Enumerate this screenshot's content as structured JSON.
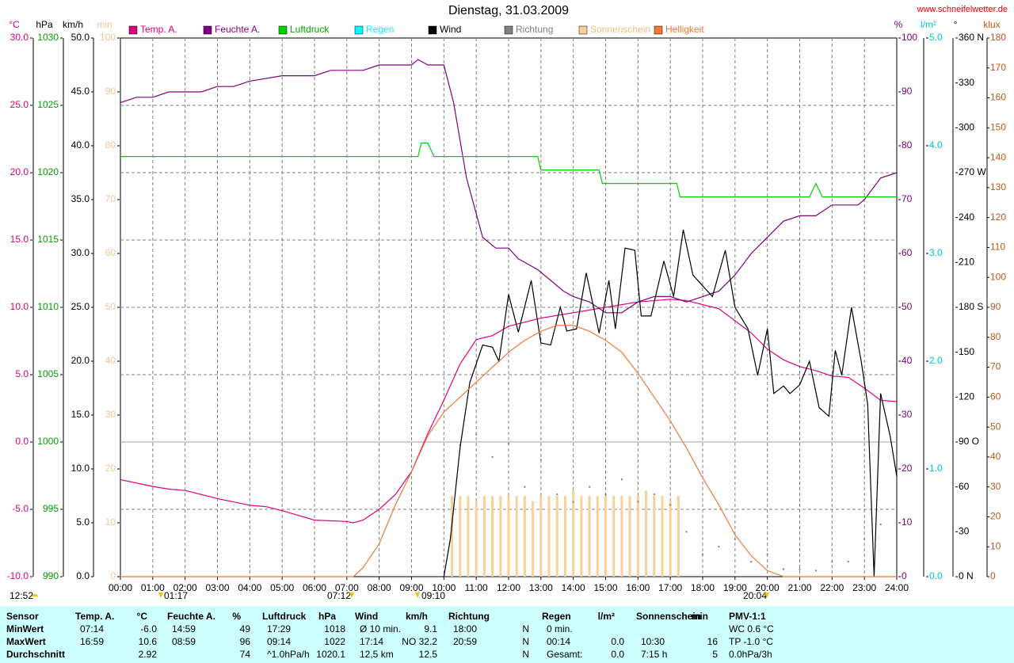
{
  "chart_data": {
    "type": "line",
    "title": "Dienstag, 31.03.2009",
    "source": "www.schneifelwetter.de",
    "grid": true,
    "xlim": [
      0,
      24
    ],
    "xticks": [
      {
        "value": 0,
        "label": "00:00"
      },
      {
        "value": 1,
        "label": "01:00"
      },
      {
        "value": 2,
        "label": "02:00"
      },
      {
        "value": 3,
        "label": "03:00"
      },
      {
        "value": 4,
        "label": "04:00"
      },
      {
        "value": 5,
        "label": "05:00"
      },
      {
        "value": 6,
        "label": "06:00"
      },
      {
        "value": 7,
        "label": "07:00"
      },
      {
        "value": 8,
        "label": "08:00"
      },
      {
        "value": 9,
        "label": "09:00"
      },
      {
        "value": 10,
        "label": "10:00"
      },
      {
        "value": 11,
        "label": "11:00"
      },
      {
        "value": 12,
        "label": "12:00"
      },
      {
        "value": 13,
        "label": "13:00"
      },
      {
        "value": 14,
        "label": "14:00"
      },
      {
        "value": 15,
        "label": "15:00"
      },
      {
        "value": 16,
        "label": "16:00"
      },
      {
        "value": 17,
        "label": "17:00"
      },
      {
        "value": 18,
        "label": "18:00"
      },
      {
        "value": 19,
        "label": "19:00"
      },
      {
        "value": 20,
        "label": "20:00"
      },
      {
        "value": 21,
        "label": "21:00"
      },
      {
        "value": 22,
        "label": "22:00"
      },
      {
        "value": 23,
        "label": "23:00"
      },
      {
        "value": 24,
        "label": "24:00"
      }
    ],
    "axes": [
      {
        "label": "°C",
        "color": "#e0007f",
        "lim": [
          -10,
          30
        ],
        "ticks": [
          {
            "value": -10,
            "label": "-10.0"
          },
          {
            "value": -5,
            "label": "-5.0"
          },
          {
            "value": 0,
            "label": "0.0"
          },
          {
            "value": 5,
            "label": "5.0"
          },
          {
            "value": 10,
            "label": "10.0"
          },
          {
            "value": 15,
            "label": "15.0"
          },
          {
            "value": 20,
            "label": "20.0"
          },
          {
            "value": 25,
            "label": "25.0"
          },
          {
            "value": 30,
            "label": "30.0"
          }
        ]
      },
      {
        "label": "hPa",
        "color": "#00a000",
        "lim": [
          990,
          1030
        ],
        "ticks": [
          990,
          995,
          1000,
          1005,
          1010,
          1015,
          1020,
          1025,
          1030
        ]
      },
      {
        "label": "km/h",
        "color": "#000000",
        "lim": [
          0,
          50
        ],
        "ticks": [
          {
            "value": 0,
            "label": "0.0"
          },
          {
            "value": 5,
            "label": "5.0"
          },
          {
            "value": 10,
            "label": "10.0"
          },
          {
            "value": 15,
            "label": "15.0"
          },
          {
            "value": 20,
            "label": "20.0"
          },
          {
            "value": 25,
            "label": "25.0"
          },
          {
            "value": 30,
            "label": "30.0"
          },
          {
            "value": 35,
            "label": "35.0"
          },
          {
            "value": 40,
            "label": "40.0"
          },
          {
            "value": 45,
            "label": "45.0"
          },
          {
            "value": 50,
            "label": "50.0"
          }
        ]
      },
      {
        "label": "min",
        "color": "#f0c890",
        "lim": [
          0,
          100
        ],
        "ticks": [
          0,
          10,
          20,
          30,
          40,
          50,
          60,
          70,
          80,
          90,
          100
        ]
      },
      {
        "label": "%",
        "color": "#800080",
        "lim": [
          0,
          100
        ],
        "ticks": [
          0,
          10,
          20,
          30,
          40,
          50,
          60,
          70,
          80,
          90,
          100
        ]
      },
      {
        "label": "l/m²",
        "color": "#00c8c8",
        "lim": [
          0,
          5
        ],
        "ticks": [
          {
            "value": 0,
            "label": "0.0"
          },
          {
            "value": 1,
            "label": "1.0"
          },
          {
            "value": 2,
            "label": "2.0"
          },
          {
            "value": 3,
            "label": "3.0"
          },
          {
            "value": 4,
            "label": "4.0"
          },
          {
            "value": 5,
            "label": "5.0"
          }
        ]
      },
      {
        "label": "°",
        "color": "#000000",
        "lim": [
          0,
          360
        ],
        "ticks": [
          {
            "value": 0,
            "label": "0 N"
          },
          30,
          60,
          {
            "value": 90,
            "label": "90 O"
          },
          120,
          150,
          {
            "value": 180,
            "label": "180 S"
          },
          210,
          240,
          {
            "value": 270,
            "label": "270 W"
          },
          300,
          330,
          {
            "value": 360,
            "label": "360 N"
          }
        ]
      },
      {
        "label": "klux",
        "color": "#c05818",
        "lim": [
          0,
          180
        ],
        "ticks": [
          0,
          10,
          20,
          30,
          40,
          50,
          60,
          70,
          80,
          90,
          100,
          110,
          120,
          130,
          140,
          150,
          160,
          170,
          180
        ]
      }
    ],
    "series": [
      {
        "name": "Temp. A.",
        "color": "#e0007f",
        "axis": 0,
        "style": "line",
        "x": [
          0,
          1,
          1.5,
          2,
          3,
          4,
          4.5,
          5,
          6,
          7,
          7.2,
          7.5,
          8,
          8.5,
          9,
          9.5,
          10,
          10.5,
          11,
          11.5,
          12,
          12.5,
          13,
          13.5,
          14,
          14.5,
          15,
          16,
          17,
          17.5,
          18,
          18.5,
          19,
          19.5,
          20,
          20.5,
          21,
          21.5,
          22,
          22.5,
          23,
          23.5,
          24
        ],
        "values": [
          -2.8,
          -3.3,
          -3.5,
          -3.6,
          -4.2,
          -4.7,
          -4.8,
          -5.1,
          -5.8,
          -5.9,
          -6.0,
          -5.8,
          -5.0,
          -3.9,
          -2.2,
          0.6,
          3.1,
          5.8,
          7.6,
          7.9,
          8.6,
          8.9,
          9.2,
          9.4,
          9.6,
          9.8,
          10.0,
          10.4,
          10.6,
          10.5,
          10.2,
          9.9,
          9.0,
          8.1,
          6.9,
          6.1,
          5.6,
          5.3,
          4.9,
          4.8,
          4.0,
          3.1,
          3.0
        ]
      },
      {
        "name": "Feuchte A.",
        "color": "#800080",
        "axis": 4,
        "style": "line",
        "x": [
          0,
          0.5,
          1,
          1.5,
          2.5,
          3,
          3.5,
          4,
          5,
          6,
          6.5,
          7.5,
          8,
          9,
          9.2,
          9.5,
          10,
          10.3,
          10.7,
          11.2,
          11.6,
          12,
          12.3,
          12.9,
          13.3,
          13.7,
          14,
          14.5,
          15,
          15.5,
          16,
          16.5,
          17,
          17.5,
          18,
          18.5,
          19,
          19.5,
          20,
          20.5,
          21,
          21.5,
          22,
          22.8,
          23,
          23.5,
          24
        ],
        "values": [
          88,
          89,
          89,
          90,
          90,
          91,
          91,
          92,
          93,
          93,
          94,
          94,
          95,
          95,
          96,
          95,
          95,
          88,
          74,
          63,
          61,
          61,
          59,
          57,
          55,
          53,
          52,
          51,
          49,
          49,
          51,
          52,
          52,
          51,
          52,
          53,
          56,
          60,
          63,
          66,
          67,
          67,
          69,
          69,
          70,
          74,
          75
        ]
      },
      {
        "name": "Luftdruck",
        "color": "#00d000",
        "axis": 1,
        "style": "line",
        "x": [
          0,
          9.2,
          9.3,
          9.5,
          9.7,
          12.9,
          13,
          14.8,
          14.9,
          17.2,
          17.3,
          21.3,
          21.5,
          21.7,
          24
        ],
        "values": [
          1021.2,
          1021.2,
          1022.2,
          1022.2,
          1021.2,
          1021.2,
          1020.2,
          1020.2,
          1019.2,
          1019.2,
          1018.2,
          1018.2,
          1019.2,
          1018.2,
          1018.2
        ]
      },
      {
        "name": "Regen",
        "color": "#00ffff",
        "axis": 5,
        "style": "line",
        "x": [],
        "values": []
      },
      {
        "name": "Wind",
        "color": "#000000",
        "axis": 2,
        "style": "line",
        "x": [
          10,
          10.2,
          10.5,
          10.8,
          11.2,
          11.5,
          11.7,
          12,
          12.3,
          12.7,
          13,
          13.3,
          13.6,
          13.8,
          14.1,
          14.4,
          14.8,
          15.1,
          15.3,
          15.6,
          15.9,
          16.1,
          16.4,
          16.8,
          17.1,
          17.4,
          17.7,
          18,
          18.3,
          18.7,
          19,
          19.4,
          19.7,
          20,
          20.2,
          20.5,
          20.7,
          21,
          21.3,
          21.6,
          21.9,
          22.1,
          22.3,
          22.6,
          22.9,
          23.1,
          23.3,
          23.5,
          23.8,
          24
        ],
        "values": [
          0,
          3.5,
          12,
          18,
          21.5,
          21.3,
          20,
          26.2,
          22.7,
          27.5,
          21.7,
          21.5,
          25,
          22.8,
          23,
          28.2,
          22.6,
          27.5,
          23,
          30.5,
          30.3,
          24.2,
          24.2,
          29.3,
          26,
          32.2,
          28,
          27,
          26,
          30.3,
          25,
          23,
          18.7,
          23,
          17,
          17.7,
          17,
          17.8,
          20,
          15.7,
          14.9,
          21,
          18.7,
          25,
          20,
          16,
          0,
          17,
          13,
          9.3
        ]
      },
      {
        "name": "Richtung",
        "color": "#808080",
        "axis": 6,
        "style": "dots",
        "x": [
          10.5,
          11,
          11.5,
          12,
          12.5,
          13,
          13.5,
          14,
          14.5,
          15,
          15.5,
          16,
          16.5,
          17,
          17.5,
          18,
          18.5,
          19,
          19.5,
          20,
          20.5,
          21,
          21.5,
          22,
          22.5,
          23,
          23.5,
          24
        ],
        "values": [
          88,
          95,
          80,
          89,
          60,
          78,
          55,
          50,
          60,
          55,
          65,
          50,
          55,
          48,
          30,
          15,
          20,
          25,
          10,
          15,
          5,
          5,
          4,
          10,
          10,
          25,
          35,
          25
        ]
      },
      {
        "name": "Sonnenschein",
        "color": "#f8d098",
        "axis": 3,
        "style": "bars",
        "x": [
          10.25,
          10.5,
          10.75,
          11,
          11.25,
          11.5,
          11.75,
          12,
          12.25,
          12.5,
          12.75,
          13,
          13.25,
          13.5,
          13.75,
          14,
          14.25,
          14.5,
          14.75,
          15,
          15.25,
          15.5,
          15.75,
          16,
          16.25,
          16.5,
          16.75,
          17,
          17.25
        ],
        "values": [
          15,
          15,
          15,
          14,
          15,
          15,
          15,
          15,
          15,
          15,
          14,
          15,
          15,
          15,
          15,
          16,
          15,
          15,
          15,
          15,
          15,
          15,
          15,
          15,
          16,
          15,
          15,
          14,
          15
        ]
      },
      {
        "name": "Helligkeit",
        "color": "#f07838",
        "axis": 7,
        "style": "line",
        "x": [
          0,
          7.2,
          7.5,
          8,
          8.5,
          9,
          9.5,
          10,
          10.5,
          11,
          11.5,
          12,
          12.5,
          13,
          13.5,
          14,
          14.5,
          15,
          15.5,
          16,
          16.5,
          17,
          17.5,
          18,
          18.5,
          19,
          19.5,
          20,
          20.5,
          24
        ],
        "values": [
          0,
          0,
          3,
          11,
          24,
          35,
          47,
          55,
          60,
          65,
          70,
          75,
          79,
          82,
          84,
          84,
          82,
          79,
          75,
          68,
          60,
          52,
          43,
          33,
          24,
          14,
          7,
          2,
          0,
          0
        ]
      }
    ],
    "annotations": [
      "12:52",
      "01:17",
      "07:12",
      "09:10",
      "20:04"
    ]
  },
  "table": {
    "header_label": "Sensor",
    "columns": [
      {
        "title": "Temp. A.",
        "unit": "°C"
      },
      {
        "title": "Feuchte A.",
        "unit": "%"
      },
      {
        "title": "Luftdruck",
        "unit": "hPa"
      },
      {
        "title": "Wind",
        "unit": "km/h"
      },
      {
        "title": "Richtung"
      },
      {
        "title": "Regen",
        "unit": "l/m²"
      },
      {
        "title": "Sonnenschein",
        "unit": "min"
      },
      {
        "title": "PMV-1:1"
      }
    ],
    "rows": [
      {
        "label": "MinWert",
        "cells": [
          {
            "left": "07:14",
            "right": "-6.0"
          },
          {
            "left": "14:59",
            "right": "49"
          },
          {
            "left": "17:29",
            "right": "1018"
          },
          {
            "left": "Ø 10 min.",
            "right": "9.1"
          },
          {
            "left": "18:00",
            "right": "N"
          },
          {
            "left": "0 min."
          },
          {},
          {
            "left": "WC 0.6 °C"
          }
        ]
      },
      {
        "label": "MaxWert",
        "cells": [
          {
            "left": "16:59",
            "right": "10.6"
          },
          {
            "left": "08:59",
            "right": "96"
          },
          {
            "left": "09:14",
            "right": "1022"
          },
          {
            "left": "17:14",
            "right": "NO 32.2"
          },
          {
            "left": "20:59",
            "right": "N"
          },
          {
            "left": "00:14",
            "right": "0.0"
          },
          {
            "left": "10:30",
            "right": "16"
          },
          {
            "left": "TP -1.0 °C"
          }
        ]
      },
      {
        "label": "Durchschnitt",
        "cells": [
          {
            "right": "2.92"
          },
          {
            "right": "74"
          },
          {
            "left": "^1.0hPa/h",
            "right": "1020.1"
          },
          {
            "left": "12,5 km",
            "right": "12.5"
          },
          {
            "right": "N"
          },
          {
            "left": "Gesamt:",
            "right": "0.0"
          },
          {
            "left": "7:15 h",
            "right": "5"
          },
          {
            "left": "0.0hPa/3h"
          }
        ]
      }
    ]
  }
}
